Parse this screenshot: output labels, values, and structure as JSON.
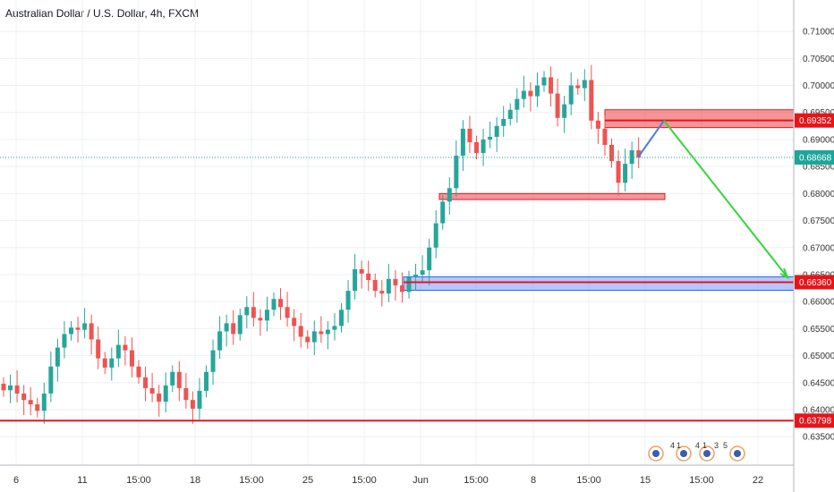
{
  "title": "Australian Dollar / U.S. Dollar, 4h, FXCM",
  "chart_data": {
    "type": "candlestick",
    "symbol": "AUDUSD",
    "timeframe": "4h",
    "ylim": [
      0.6314,
      0.7125
    ],
    "grid": true,
    "y_ticks": [
      "0.71000",
      "0.70500",
      "0.70000",
      "0.69500",
      "0.69000",
      "0.68500",
      "0.68000",
      "0.67500",
      "0.67000",
      "0.66500",
      "0.66000",
      "0.65500",
      "0.65000",
      "0.64500",
      "0.64000",
      "0.63500"
    ],
    "y_tick_values": [
      0.71,
      0.705,
      0.7,
      0.695,
      0.69,
      0.685,
      0.68,
      0.675,
      0.67,
      0.665,
      0.66,
      0.655,
      0.65,
      0.645,
      0.64,
      0.635
    ],
    "x_ticks": [
      "6",
      "11",
      "15:00",
      "18",
      "15:00",
      "25",
      "15:00",
      "Jun",
      "15:00",
      "8",
      "15:00",
      "15",
      "15:00",
      "22"
    ],
    "price_labels": [
      {
        "value": "0.69352",
        "color": "#e8141a"
      },
      {
        "value": "0.68668",
        "color": "#1ba69a"
      },
      {
        "value": "0.66360",
        "color": "#e8141a"
      },
      {
        "value": "0.63798",
        "color": "#e8141a"
      }
    ],
    "closes": [
      0.6436,
      0.6445,
      0.643,
      0.6418,
      0.641,
      0.6398,
      0.643,
      0.648,
      0.6515,
      0.654,
      0.6552,
      0.6548,
      0.656,
      0.653,
      0.6495,
      0.6478,
      0.6495,
      0.652,
      0.651,
      0.648,
      0.646,
      0.644,
      0.643,
      0.6415,
      0.6445,
      0.647,
      0.644,
      0.6418,
      0.6402,
      0.6435,
      0.647,
      0.651,
      0.6545,
      0.656,
      0.654,
      0.6575,
      0.659,
      0.657,
      0.6565,
      0.6585,
      0.6605,
      0.659,
      0.657,
      0.6555,
      0.6535,
      0.6525,
      0.6545,
      0.654,
      0.6548,
      0.6555,
      0.6585,
      0.662,
      0.666,
      0.6652,
      0.664,
      0.662,
      0.6615,
      0.6642,
      0.663,
      0.6618,
      0.6645,
      0.665,
      0.6658,
      0.67,
      0.6745,
      0.6785,
      0.681,
      0.687,
      0.692,
      0.6895,
      0.6875,
      0.69,
      0.6905,
      0.6925,
      0.6938,
      0.6955,
      0.6975,
      0.699,
      0.698,
      0.7,
      0.7015,
      0.6985,
      0.694,
      0.6965,
      0.7,
      0.6995,
      0.701,
      0.6935,
      0.692,
      0.689,
      0.686,
      0.682,
      0.6855,
      0.688,
      0.6867
    ],
    "zones": [
      {
        "type": "resistance",
        "top": 0.6955,
        "bottom": 0.6922,
        "color": "#e8141a"
      },
      {
        "type": "support",
        "top": 0.68,
        "bottom": 0.6789,
        "color": "#e8141a"
      },
      {
        "type": "support",
        "top": 0.6646,
        "bottom": 0.6621,
        "color": "#2962ff"
      }
    ],
    "horizontal_lines": [
      0.69352,
      0.6636,
      0.63798
    ],
    "current_price": 0.68668,
    "projection": [
      {
        "from": 0.6867,
        "to": 0.6935,
        "color": "#4a7fd4"
      },
      {
        "from": 0.6935,
        "to": 0.6645,
        "color": "#35d43a"
      }
    ],
    "event_icons": [
      "4",
      "1",
      "4",
      "1",
      "3",
      "5"
    ]
  }
}
